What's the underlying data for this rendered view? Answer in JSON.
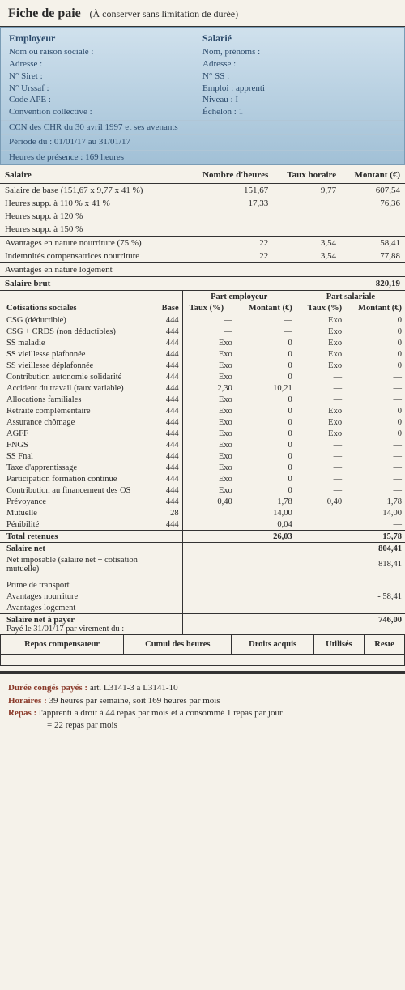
{
  "title": {
    "main": "Fiche de paie",
    "sub": "(À conserver sans limitation de durée)"
  },
  "header": {
    "employer": {
      "title": "Employeur",
      "lines": [
        "Nom ou raison sociale :",
        "Adresse :",
        "N° Siret :",
        "N° Urssaf :",
        "Code APE :",
        "Convention collective :"
      ]
    },
    "employee": {
      "title": "Salarié",
      "lines": [
        "Nom, prénoms :",
        "Adresse :",
        "N° SS :",
        "Emploi : apprenti",
        "Niveau : I",
        "Échelon : 1"
      ]
    },
    "full1": "CCN des CHR du 30 avril 1997 et ses avenants",
    "full2": "Période du : 01/01/17 au 31/01/17",
    "full3": "Heures de présence : 169 heures"
  },
  "salaire": {
    "head": [
      "Salaire",
      "Nombre d'heures",
      "Taux horaire",
      "Montant (€)"
    ],
    "rows1": [
      [
        "Salaire de base (151,67 x 9,77 x 41 %)",
        "151,67",
        "9,77",
        "607,54"
      ],
      [
        "Heures supp. à 110 % x 41 %",
        "17,33",
        "",
        "76,36"
      ],
      [
        "Heures supp. à 120 %",
        "",
        "",
        ""
      ],
      [
        "Heures supp. à 150 %",
        "",
        "",
        ""
      ]
    ],
    "rows2": [
      [
        "Avantages en nature nourriture (75 %)",
        "22",
        "3,54",
        "58,41"
      ],
      [
        "Indemnités compensatrices nourriture",
        "22",
        "3,54",
        "77,88"
      ]
    ],
    "rows3": [
      [
        "Avantages en nature logement",
        "",
        "",
        ""
      ]
    ],
    "brut": [
      "Salaire brut",
      "",
      "",
      "820,19"
    ]
  },
  "cotisations": {
    "title": "Cotisations sociales",
    "head": {
      "base": "Base",
      "emp": "Part employeur",
      "sal": "Part salariale",
      "taux": "Taux (%)",
      "mnt": "Montant (€)"
    },
    "rows": [
      [
        "CSG (déductible)",
        "444",
        "—",
        "—",
        "Exo",
        "0"
      ],
      [
        "CSG + CRDS (non déductibles)",
        "444",
        "—",
        "—",
        "Exo",
        "0"
      ],
      [
        "SS maladie",
        "444",
        "Exo",
        "0",
        "Exo",
        "0"
      ],
      [
        "SS vieillesse plafonnée",
        "444",
        "Exo",
        "0",
        "Exo",
        "0"
      ],
      [
        "SS vieillesse déplafonnée",
        "444",
        "Exo",
        "0",
        "Exo",
        "0"
      ],
      [
        "Contribution autonomie solidarité",
        "444",
        "Exo",
        "0",
        "—",
        "—"
      ],
      [
        "Accident du travail (taux variable)",
        "444",
        "2,30",
        "10,21",
        "—",
        "—"
      ],
      [
        "Allocations familiales",
        "444",
        "Exo",
        "0",
        "—",
        "—"
      ],
      [
        "Retraite complémentaire",
        "444",
        "Exo",
        "0",
        "Exo",
        "0"
      ],
      [
        "Assurance chômage",
        "444",
        "Exo",
        "0",
        "Exo",
        "0"
      ],
      [
        "AGFF",
        "444",
        "Exo",
        "0",
        "Exo",
        "0"
      ],
      [
        "FNGS",
        "444",
        "Exo",
        "0",
        "—",
        "—"
      ],
      [
        "SS Fnal",
        "444",
        "Exo",
        "0",
        "—",
        "—"
      ],
      [
        "Taxe d'apprentissage",
        "444",
        "Exo",
        "0",
        "—",
        "—"
      ],
      [
        "Participation formation continue",
        "444",
        "Exo",
        "0",
        "—",
        "—"
      ],
      [
        "Contribution au financement des OS",
        "444",
        "Exo",
        "0",
        "—",
        "—"
      ],
      [
        "Prévoyance",
        "444",
        "0,40",
        "1,78",
        "0,40",
        "1,78"
      ],
      [
        "Mutuelle",
        "28",
        "",
        "14,00",
        "",
        "14,00"
      ],
      [
        "Pénibilité",
        "444",
        "",
        "0,04",
        "",
        "—"
      ]
    ],
    "total": [
      "Total retenues",
      "",
      "",
      "26,03",
      "",
      "15,78"
    ]
  },
  "net": {
    "salnet": [
      "Salaire net",
      "",
      "",
      "",
      "",
      "804,41"
    ],
    "imposable": [
      "Net imposable (salaire net + cotisation mutuelle)",
      "",
      "",
      "",
      "",
      "818,41"
    ],
    "rows": [
      [
        "Prime de transport",
        "",
        "",
        "",
        "",
        ""
      ],
      [
        "Avantages nourriture",
        "",
        "",
        "",
        "",
        "- 58,41"
      ],
      [
        "Avantages logement",
        "",
        "",
        "",
        "",
        ""
      ]
    ],
    "payer_lbl": "Salaire net à payer",
    "payer_val": "746,00",
    "payer_sub": "Payé le 31/01/17 par virement du :"
  },
  "repos": [
    "Repos compensateur",
    "Cumul des heures",
    "Droits acquis",
    "Utilisés",
    "Reste"
  ],
  "footer": {
    "l1_lbl": "Durée congés payés :",
    "l1_txt": "art. L3141-3 à  L3141-10",
    "l2_lbl": "Horaires :",
    "l2_txt": "39 heures par semaine, soit 169 heures par mois",
    "l3_lbl": "Repas :",
    "l3_txt": "l'apprenti a droit à 44 repas par mois et a consommé 1 repas par jour",
    "l4_txt": "= 22 repas par mois"
  }
}
